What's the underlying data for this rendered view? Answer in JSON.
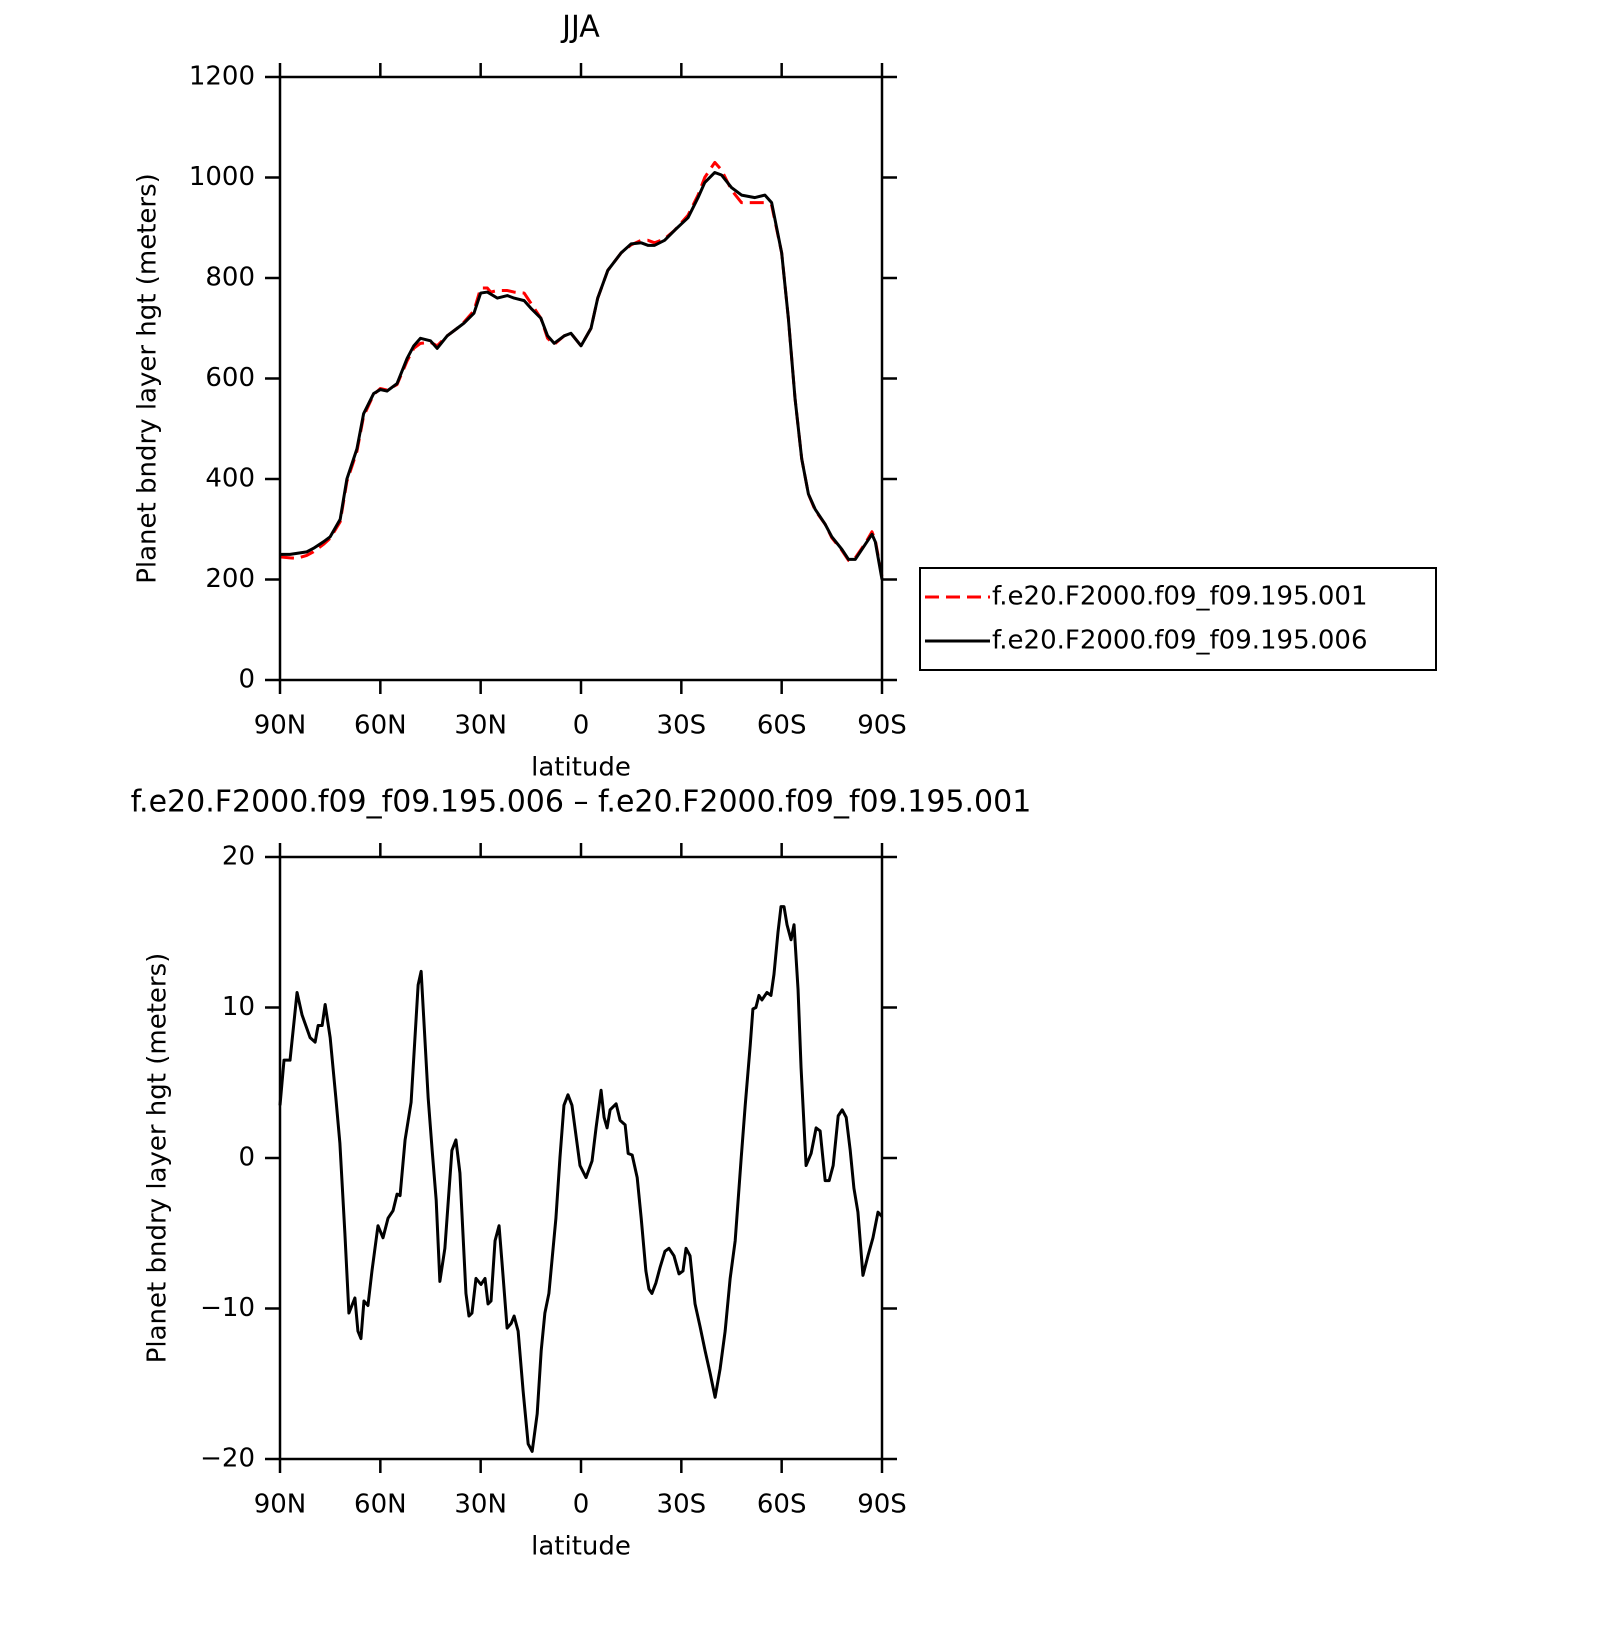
{
  "chart_data": [
    {
      "type": "line",
      "title": "JJA",
      "xlabel": "latitude",
      "ylabel": "Planet bndry layer hgt (meters)",
      "xlim": [
        90,
        -90
      ],
      "xticks": [
        {
          "value": 90,
          "label": "90N"
        },
        {
          "value": 60,
          "label": "60N"
        },
        {
          "value": 30,
          "label": "30N"
        },
        0,
        {
          "value": -30,
          "label": "30S"
        },
        {
          "value": -60,
          "label": "60S"
        },
        {
          "value": -90,
          "label": "90S"
        }
      ],
      "ylim": [
        0,
        1200
      ],
      "yticks": [
        0,
        200,
        400,
        600,
        800,
        1000,
        1200
      ],
      "legend": "right",
      "x": [
        90,
        87,
        85,
        82,
        80,
        77,
        75,
        72,
        70,
        67,
        65,
        62,
        60,
        58,
        55,
        52,
        50,
        48,
        45,
        43,
        40,
        37,
        35,
        32,
        30,
        28,
        27,
        25,
        22,
        20,
        17,
        15,
        12,
        10,
        8,
        5,
        3,
        0,
        -3,
        -5,
        -8,
        -12,
        -15,
        -18,
        -20,
        -22,
        -25,
        -28,
        -32,
        -35,
        -37,
        -40,
        -42,
        -45,
        -48,
        -52,
        -55,
        -57,
        -60,
        -62,
        -64,
        -66,
        -68,
        -70,
        -73,
        -75,
        -78,
        -80,
        -82,
        -85,
        -87,
        -88,
        -90
      ],
      "series": [
        {
          "name": "f.e20.F2000.f09_f09.195.001",
          "color": "#ff0000",
          "line_style": "dashed",
          "values": [
            245,
            243,
            242,
            248,
            255,
            270,
            282,
            315,
            395,
            455,
            525,
            568,
            580,
            577,
            588,
            635,
            660,
            670,
            672,
            665,
            685,
            700,
            712,
            735,
            780,
            780,
            772,
            775,
            775,
            772,
            770,
            750,
            720,
            680,
            668,
            685,
            690,
            665,
            700,
            760,
            815,
            850,
            866,
            875,
            875,
            870,
            878,
            895,
            925,
            965,
            1000,
            1030,
            1015,
            975,
            950,
            950,
            950,
            945,
            850,
            720,
            560,
            440,
            370,
            338,
            310,
            283,
            258,
            238,
            243,
            272,
            295,
            278,
            205
          ]
        },
        {
          "name": "f.e20.F2000.f09_f09.195.006",
          "color": "#000000",
          "line_style": "solid",
          "values": [
            250,
            250,
            252,
            255,
            262,
            275,
            285,
            320,
            400,
            460,
            530,
            570,
            578,
            575,
            590,
            640,
            665,
            680,
            675,
            660,
            685,
            700,
            710,
            730,
            770,
            772,
            768,
            760,
            765,
            760,
            755,
            740,
            720,
            685,
            670,
            685,
            690,
            665,
            700,
            760,
            815,
            850,
            868,
            870,
            865,
            865,
            875,
            895,
            920,
            960,
            990,
            1010,
            1005,
            980,
            965,
            960,
            965,
            950,
            850,
            720,
            560,
            440,
            370,
            340,
            310,
            285,
            260,
            240,
            240,
            270,
            290,
            275,
            200
          ]
        }
      ]
    },
    {
      "type": "line",
      "title": "f.e20.F2000.f09_f09.195.006 – f.e20.F2000.f09_f09.195.001",
      "xlabel": "latitude",
      "ylabel": "Planet bndry layer hgt (meters)",
      "xlim": [
        90,
        -90
      ],
      "xticks": [
        {
          "value": 90,
          "label": "90N"
        },
        {
          "value": 60,
          "label": "60N"
        },
        {
          "value": 30,
          "label": "30N"
        },
        0,
        {
          "value": -30,
          "label": "30S"
        },
        {
          "value": -60,
          "label": "60S"
        },
        {
          "value": -90,
          "label": "90S"
        }
      ],
      "ylim": [
        -20,
        20
      ],
      "yticks": [
        {
          "value": -20,
          "label": "−20"
        },
        {
          "value": -10,
          "label": "−10"
        },
        0,
        10,
        20
      ],
      "color": "#000000",
      "x": [
        90,
        88.8,
        87.0,
        84.9,
        83.4,
        81.0,
        79.5,
        78.6,
        77.4,
        76.5,
        75.0,
        73.3,
        72.1,
        70.6,
        69.4,
        67.6,
        66.7,
        65.8,
        64.9,
        63.7,
        62.5,
        60.7,
        59.2,
        57.7,
        56.2,
        55.0,
        54.1,
        52.6,
        50.8,
        48.7,
        47.8,
        45.7,
        44.5,
        43.3,
        42.2,
        40.7,
        38.6,
        37.4,
        36.2,
        35.3,
        34.4,
        33.5,
        32.6,
        31.4,
        29.9,
        28.7,
        27.8,
        26.9,
        25.7,
        24.5,
        23.6,
        22.1,
        20.9,
        20.0,
        18.8,
        17.3,
        15.8,
        14.6,
        13.1,
        11.9,
        10.8,
        9.6,
        7.5,
        6.3,
        5.1,
        3.9,
        2.7,
        1.5,
        0.3,
        -1.5,
        -3.3,
        -4.5,
        -6.0,
        -6.9,
        -7.8,
        -8.7,
        -10.5,
        -11.7,
        -13.2,
        -14.1,
        -15.3,
        -16.8,
        -18.0,
        -19.4,
        -20.3,
        -21.2,
        -22.4,
        -23.6,
        -25.1,
        -26.3,
        -27.8,
        -29.3,
        -30.5,
        -31.4,
        -32.6,
        -34.1,
        -35.6,
        -37.1,
        -38.6,
        -40.1,
        -41.6,
        -43.1,
        -44.6,
        -46.1,
        -47.9,
        -49.1,
        -50.6,
        -51.4,
        -52.3,
        -53.2,
        -54.1,
        -55.6,
        -56.8,
        -57.7,
        -58.9,
        -59.8,
        -60.7,
        -61.6,
        -62.8,
        -63.7,
        -64.9,
        -65.8,
        -67.3,
        -68.8,
        -70.3,
        -71.5,
        -73.0,
        -74.2,
        -75.4,
        -76.9,
        -78.1,
        -79.3,
        -80.5,
        -81.6,
        -82.8,
        -84.3,
        -85.8,
        -87.3,
        -88.8,
        -90.0
      ],
      "values": [
        3.5,
        6.5,
        6.5,
        11,
        9.5,
        8,
        7.7,
        8.8,
        8.8,
        10.2,
        8,
        4,
        1,
        -5,
        -10.3,
        -9.3,
        -11.5,
        -12,
        -9.5,
        -9.8,
        -7.5,
        -4.5,
        -5.3,
        -4,
        -3.5,
        -2.4,
        -2.5,
        1.2,
        3.7,
        11.5,
        12.4,
        4,
        0.5,
        -2.8,
        -8.2,
        -6,
        0.5,
        1.2,
        -1,
        -5,
        -9,
        -10.5,
        -10.3,
        -8,
        -8.4,
        -8,
        -9.7,
        -9.5,
        -5.5,
        -4.5,
        -7,
        -11.3,
        -11,
        -10.5,
        -11.5,
        -15.5,
        -19,
        -19.5,
        -17,
        -12.8,
        -10.3,
        -9,
        -4,
        0,
        3.5,
        4.2,
        3.5,
        1.5,
        -0.5,
        -1.3,
        -0.2,
        2.0,
        4.5,
        2.7,
        2.0,
        3.2,
        3.6,
        2.5,
        2.2,
        0.3,
        0.2,
        -1.3,
        -4,
        -7.5,
        -8.7,
        -9,
        -8.3,
        -7.3,
        -6.2,
        -6,
        -6.5,
        -7.7,
        -7.5,
        -6,
        -6.5,
        -9.7,
        -11.2,
        -12.8,
        -14.3,
        -15.9,
        -14,
        -11.5,
        -8,
        -5.5,
        0,
        3.5,
        7.5,
        9.9,
        10,
        10.8,
        10.5,
        11,
        10.8,
        12.2,
        15,
        16.7,
        16.7,
        15.5,
        14.5,
        15.5,
        11.2,
        6,
        -0.5,
        0.3,
        2.0,
        1.8,
        -1.5,
        -1.5,
        -0.5,
        2.8,
        3.2,
        2.7,
        0.5,
        -2,
        -3.6,
        -7.8,
        -6.5,
        -5.3,
        -3.6,
        -3.9
      ]
    }
  ]
}
